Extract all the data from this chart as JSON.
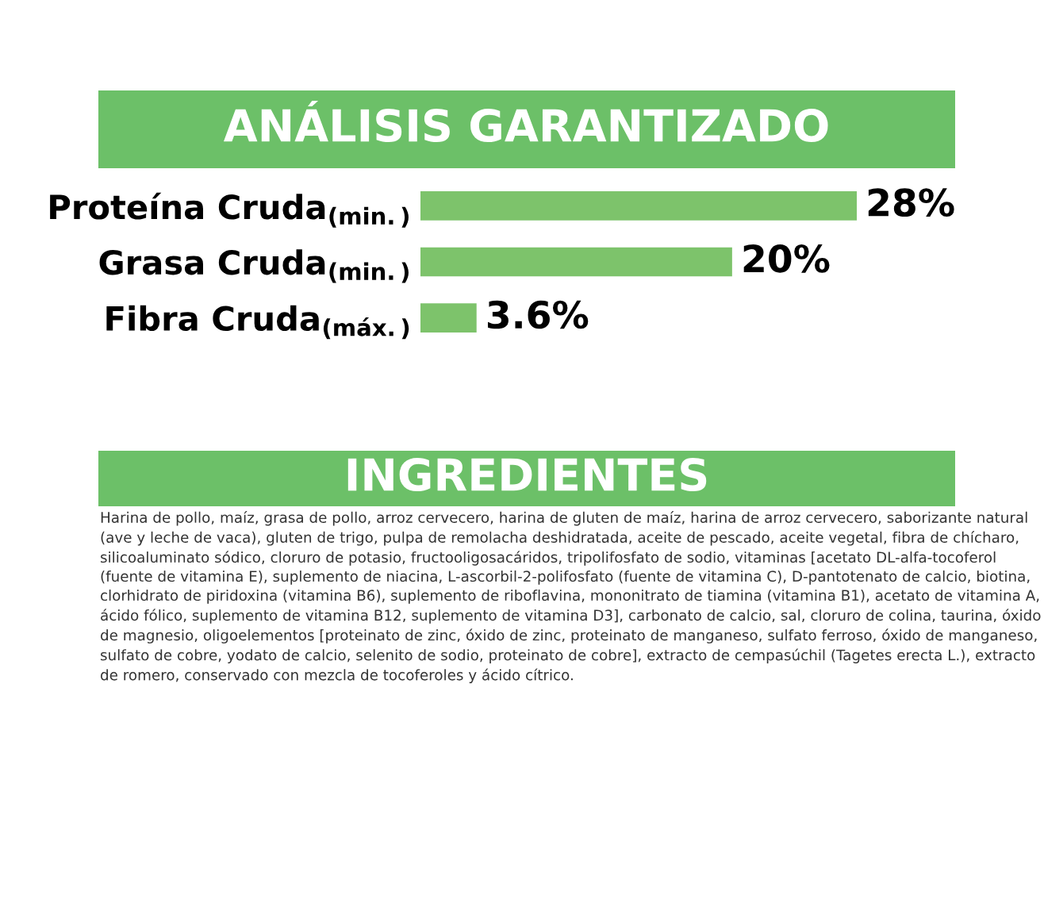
{
  "chart_data": {
    "type": "bar",
    "orientation": "horizontal",
    "title": "ANÁLISIS GARANTIZADO",
    "categories": [
      "Proteína Cruda$_{(min.)}$",
      "Grasa Cruda$_{(min.)}$",
      "Fibra Cruda$_{(máx.)}$"
    ],
    "values": [
      28,
      20,
      3.6
    ],
    "value_labels": [
      "28%",
      "20%",
      "3.6%"
    ],
    "color": "#7dc36b",
    "annotations": [
      "INGREDIENTES",
      "Harina de pollo, maíz, grasa de pollo, arroz cervecero, harina de gluten de maíz, harina de arroz cervecero, saborizante natural (ave y leche de vaca), gluten de trigo, pulpa de remolacha deshidratada, aceite de pescado, aceite vegetal, fibra de chícharo, silicoaluminato sódico, cloruro de potasio, fructooligosacáridos, tripolifosfato de sodio, vitaminas [acetato DL-alfa-tocoferol (fuente de vitamina E), suplemento de niacina, L-ascorbil-2-polifosfato (fuente de vitamina C), D-pantotenato de calcio, biotina, clorhidrato de piridoxina (vitamina B6), suplemento de riboflavina, mononitrato de tiamina (vitamina B1), acetato de vitamina A, ácido fólico, suplemento de vitamina B12, suplemento de vitamina D3], carbonato de calcio, sal, cloruro de colina, taurina, óxido de magnesio, oligoelementos [proteinato de zinc, óxido de zinc, proteinato de manganeso, sulfato ferroso, óxido de manganeso, sulfato de cobre, yodato de calcio, selenito de sodio, proteinato de cobre], extracto de cempasúchil (Tagetes erecta L.), extracto de romero, conservado con mezcla de tocoferoles y ácido cítrico."
    ]
  }
}
